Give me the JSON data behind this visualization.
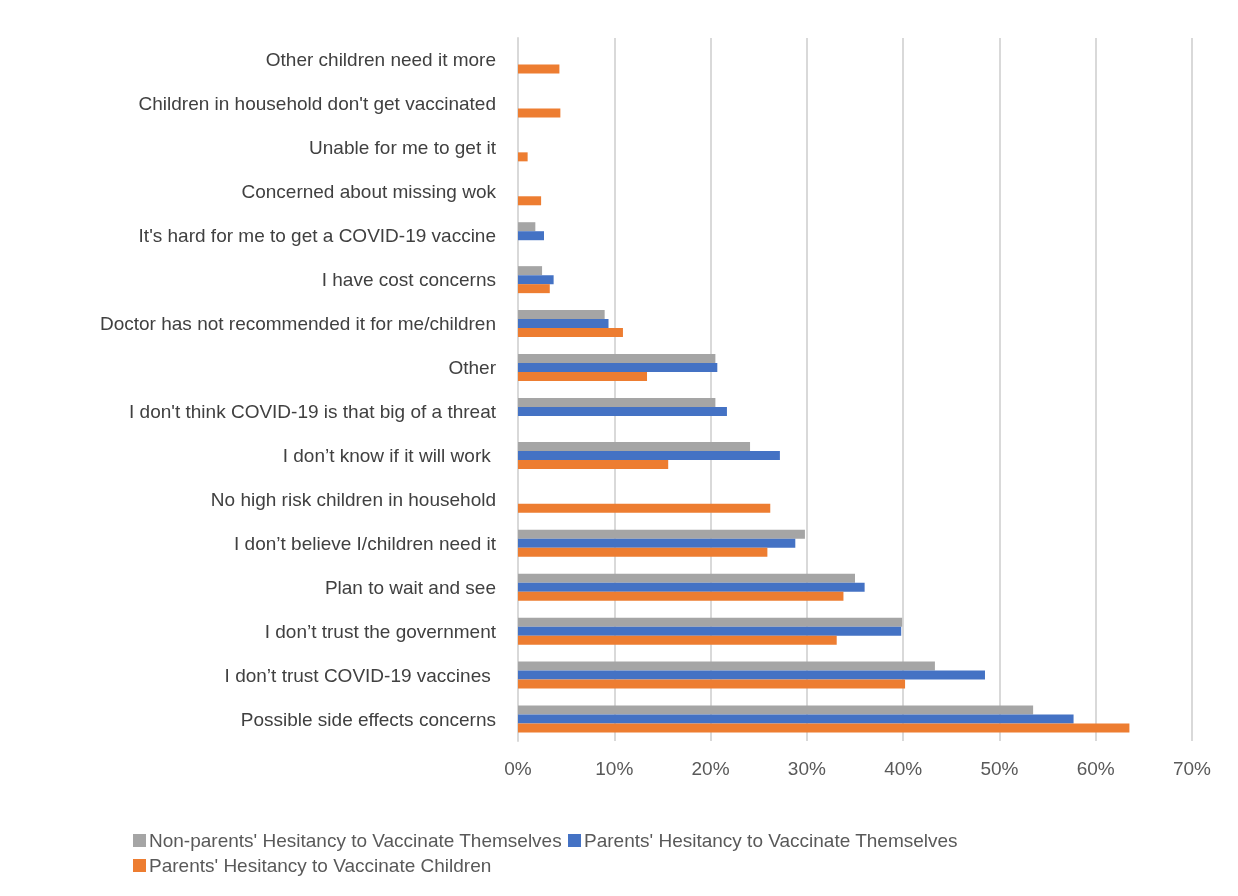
{
  "chart_data": {
    "type": "bar",
    "orientation": "horizontal",
    "categories": [
      "Other children need it more",
      "Children in household don't get vaccinated",
      "Unable for me to get it",
      "Concerned about missing wok",
      "It's hard for me to get a COVID-19 vaccine",
      "I have cost concerns",
      "Doctor has not recommended it for me/children",
      "Other",
      "I don't think COVID-19 is that big of a threat",
      "I don’t know if it will work ",
      "No high risk children in household",
      "I don’t believe I/children need it",
      "Plan to wait and see",
      "I don’t trust the government",
      "I don’t trust COVID-19 vaccines ",
      "Possible side effects concerns"
    ],
    "series": [
      {
        "name": "Non-parents' Hesitancy to Vaccinate Themselves",
        "color": "#a5a5a5",
        "values": [
          null,
          null,
          null,
          null,
          1.8,
          2.5,
          9.0,
          20.5,
          20.5,
          24.1,
          null,
          29.8,
          35.0,
          39.9,
          43.3,
          53.5
        ]
      },
      {
        "name": "Parents' Hesitancy to Vaccinate Themselves",
        "color": "#4472c4",
        "values": [
          null,
          null,
          null,
          null,
          2.7,
          3.7,
          9.4,
          20.7,
          21.7,
          27.2,
          null,
          28.8,
          36.0,
          39.8,
          48.5,
          57.7
        ]
      },
      {
        "name": "Parents' Hesitancy to Vaccinate Children",
        "color": "#ed7d31",
        "values": [
          4.3,
          4.4,
          1.0,
          2.4,
          null,
          3.3,
          10.9,
          13.4,
          null,
          15.6,
          26.2,
          25.9,
          33.8,
          33.1,
          40.2,
          63.5
        ]
      }
    ],
    "xlim": [
      0,
      70
    ],
    "xticks": [
      {
        "value": 0,
        "label": "0%"
      },
      {
        "value": 10,
        "label": "10%"
      },
      {
        "value": 20,
        "label": "20%"
      },
      {
        "value": 30,
        "label": "30%"
      },
      {
        "value": 40,
        "label": "40%"
      },
      {
        "value": 50,
        "label": "50%"
      },
      {
        "value": 60,
        "label": "60%"
      },
      {
        "value": 70,
        "label": "70%"
      }
    ],
    "grid": "x",
    "legend": "bottom"
  }
}
